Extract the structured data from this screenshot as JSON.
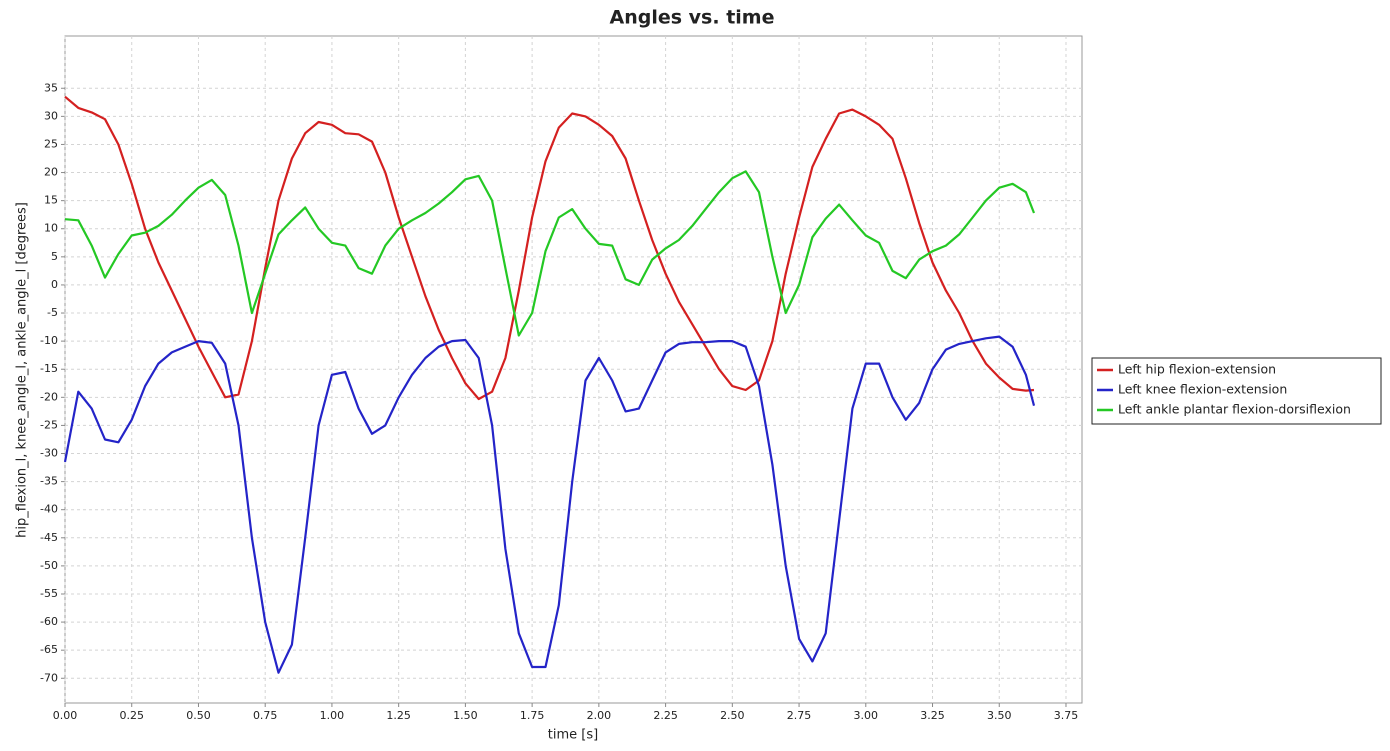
{
  "chart_data": {
    "type": "line",
    "title": "Angles vs. time",
    "x_label": "time [s]",
    "y_label": "hip_flexion_l, knee_angle_l, ankle_angle_l [degrees]",
    "x": [
      0,
      0.05,
      0.1,
      0.15,
      0.2,
      0.25,
      0.3,
      0.35,
      0.4,
      0.45,
      0.5,
      0.55,
      0.6,
      0.65,
      0.7,
      0.75,
      0.8,
      0.85,
      0.9,
      0.95,
      1.0,
      1.05,
      1.1,
      1.15,
      1.2,
      1.25,
      1.3,
      1.35,
      1.4,
      1.45,
      1.5,
      1.55,
      1.6,
      1.65,
      1.7,
      1.75,
      1.8,
      1.85,
      1.9,
      1.95,
      2.0,
      2.05,
      2.1,
      2.15,
      2.2,
      2.25,
      2.3,
      2.35,
      2.4,
      2.45,
      2.5,
      2.55,
      2.6,
      2.65,
      2.7,
      2.75,
      2.8,
      2.85,
      2.9,
      2.95,
      3.0,
      3.05,
      3.1,
      3.15,
      3.2,
      3.25,
      3.3,
      3.35,
      3.4,
      3.45,
      3.5,
      3.55,
      3.6,
      3.63
    ],
    "series": [
      {
        "name": "Left hip flexion-extension",
        "color": "#d42020",
        "values": [
          33.5,
          31.5,
          30.7,
          29.5,
          25,
          18,
          10,
          4,
          -1,
          -6,
          -11,
          -15.5,
          -20,
          -19.5,
          -10,
          3,
          15,
          22.5,
          27,
          29,
          28.5,
          27,
          26.8,
          25.5,
          20,
          12,
          5,
          -2,
          -8,
          -13,
          -17.5,
          -20.3,
          -19,
          -13,
          -1,
          12,
          22,
          28,
          30.5,
          30,
          28.5,
          26.5,
          22.5,
          15,
          8,
          2,
          -3,
          -7,
          -11,
          -15,
          -18,
          -18.7,
          -17,
          -10,
          2,
          12,
          21,
          26,
          30.5,
          31.2,
          30,
          28.5,
          26,
          19,
          11,
          4,
          -1,
          -5,
          -10,
          -14,
          -16.5,
          -18.5,
          -18.8,
          -18.7
        ]
      },
      {
        "name": "Left knee flexion-extension",
        "color": "#2424c8",
        "values": [
          -31.5,
          -19,
          -22,
          -27.5,
          -28,
          -24,
          -18,
          -14,
          -12,
          -11,
          -10,
          -10.3,
          -14,
          -25,
          -45,
          -60,
          -69,
          -64,
          -45,
          -25,
          -16,
          -15.5,
          -22,
          -26.5,
          -25,
          -20,
          -16,
          -13,
          -11,
          -10,
          -9.8,
          -13,
          -25,
          -47,
          -62,
          -68,
          -68,
          -57,
          -35,
          -17,
          -13,
          -17,
          -22.5,
          -22,
          -17,
          -12,
          -10.5,
          -10.2,
          -10.2,
          -10,
          -10,
          -11,
          -18,
          -32,
          -50,
          -63,
          -67,
          -62,
          -42,
          -22,
          -14,
          -14,
          -20,
          -24,
          -21,
          -15,
          -11.5,
          -10.5,
          -10,
          -9.5,
          -9.2,
          -11,
          -16,
          -21.5
        ]
      },
      {
        "name": "Left ankle plantar flexion-dorsiflexion",
        "color": "#24c824",
        "values": [
          11.7,
          11.5,
          7,
          1.3,
          5.5,
          8.8,
          9.3,
          10.5,
          12.5,
          15,
          17.3,
          18.7,
          16,
          7,
          -5,
          2,
          9,
          11.5,
          13.8,
          10,
          7.5,
          7,
          3,
          2,
          7,
          10,
          11.5,
          12.8,
          14.5,
          16.5,
          18.8,
          19.4,
          15,
          3,
          -9,
          -5,
          6,
          12,
          13.5,
          10,
          7.3,
          7,
          1,
          0,
          4.5,
          6.5,
          8,
          10.5,
          13.5,
          16.5,
          19,
          20.2,
          16.5,
          5,
          -5,
          0,
          8.5,
          11.8,
          14.3,
          11.5,
          8.8,
          7.5,
          2.5,
          1.2,
          4.5,
          6,
          7,
          9,
          12,
          15,
          17.3,
          18,
          16.5,
          12.8
        ]
      }
    ],
    "xlim": [
      0,
      3.81
    ],
    "ylim": [
      -74.4,
      44.3
    ],
    "xticks": [
      {
        "value": 0,
        "label": "0.00"
      },
      {
        "value": 0.25,
        "label": "0.25"
      },
      {
        "value": 0.5,
        "label": "0.50"
      },
      {
        "value": 0.75,
        "label": "0.75"
      },
      {
        "value": 1,
        "label": "1.00"
      },
      {
        "value": 1.25,
        "label": "1.25"
      },
      {
        "value": 1.5,
        "label": "1.50"
      },
      {
        "value": 1.75,
        "label": "1.75"
      },
      {
        "value": 2,
        "label": "2.00"
      },
      {
        "value": 2.25,
        "label": "2.25"
      },
      {
        "value": 2.5,
        "label": "2.50"
      },
      {
        "value": 2.75,
        "label": "2.75"
      },
      {
        "value": 3,
        "label": "3.00"
      },
      {
        "value": 3.25,
        "label": "3.25"
      },
      {
        "value": 3.5,
        "label": "3.50"
      },
      {
        "value": 3.75,
        "label": "3.75"
      }
    ],
    "yticks": [
      35,
      30,
      25,
      20,
      15,
      10,
      5,
      0,
      -5,
      -10,
      -15,
      -20,
      -25,
      -30,
      -35,
      -40,
      -45,
      -50,
      -55,
      -60,
      -65,
      -70
    ],
    "grid": true,
    "legend": "right"
  }
}
